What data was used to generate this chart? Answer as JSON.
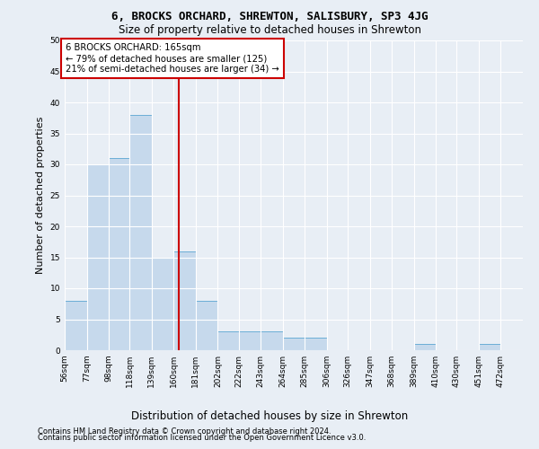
{
  "title": "6, BROCKS ORCHARD, SHREWTON, SALISBURY, SP3 4JG",
  "subtitle": "Size of property relative to detached houses in Shrewton",
  "xlabel": "Distribution of detached houses by size in Shrewton",
  "ylabel": "Number of detached properties",
  "bin_labels": [
    "56sqm",
    "77sqm",
    "98sqm",
    "118sqm",
    "139sqm",
    "160sqm",
    "181sqm",
    "202sqm",
    "222sqm",
    "243sqm",
    "264sqm",
    "285sqm",
    "306sqm",
    "326sqm",
    "347sqm",
    "368sqm",
    "389sqm",
    "410sqm",
    "430sqm",
    "451sqm",
    "472sqm"
  ],
  "bin_left_edges": [
    56,
    77,
    98,
    118,
    139,
    160,
    181,
    202,
    222,
    243,
    264,
    285,
    306,
    326,
    347,
    368,
    389,
    410,
    430,
    451,
    472
  ],
  "bin_widths": [
    21,
    21,
    20,
    21,
    21,
    21,
    21,
    20,
    21,
    21,
    21,
    21,
    20,
    21,
    21,
    21,
    21,
    20,
    21,
    21,
    21
  ],
  "counts": [
    8,
    30,
    31,
    38,
    15,
    16,
    8,
    3,
    3,
    3,
    2,
    2,
    0,
    0,
    0,
    0,
    1,
    0,
    0,
    1,
    0
  ],
  "bar_color": "#c6d9ec",
  "bar_edge_color": "#6baed6",
  "property_size": 165,
  "vline_color": "#cc0000",
  "annotation_text": "6 BROCKS ORCHARD: 165sqm\n← 79% of detached houses are smaller (125)\n21% of semi-detached houses are larger (34) →",
  "annotation_box_color": "#ffffff",
  "annotation_box_edge_color": "#cc0000",
  "ylim": [
    0,
    50
  ],
  "yticks": [
    0,
    5,
    10,
    15,
    20,
    25,
    30,
    35,
    40,
    45,
    50
  ],
  "footer_line1": "Contains HM Land Registry data © Crown copyright and database right 2024.",
  "footer_line2": "Contains public sector information licensed under the Open Government Licence v3.0.",
  "bg_color": "#e8eef5",
  "plot_bg_color": "#e8eef5",
  "grid_color": "#ffffff",
  "title_fontsize": 9,
  "subtitle_fontsize": 8.5,
  "ylabel_fontsize": 8,
  "xlabel_fontsize": 8.5,
  "tick_fontsize": 6.5,
  "footer_fontsize": 6
}
